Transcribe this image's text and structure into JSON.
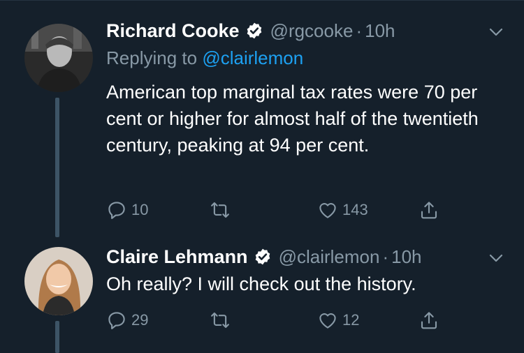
{
  "tweets": [
    {
      "name": "Richard Cooke",
      "handle": "@rgcooke",
      "dot": "·",
      "time": "10h",
      "replying_prefix": "Replying to ",
      "replying_handle": "@clairlemon",
      "text": "American top marginal tax rates were 70 per cent or higher for almost half of the twentieth century, peaking at 94 per cent.",
      "replies": "10",
      "retweets": "",
      "likes": "143"
    },
    {
      "name": "Claire Lehmann",
      "handle": "@clairlemon",
      "dot": "·",
      "time": "10h",
      "text": "Oh really? I will check out the history.",
      "replies": "29",
      "retweets": "",
      "likes": "12"
    }
  ],
  "colors": {
    "background": "#15202b",
    "secondary_text": "#8899a6",
    "link": "#1da1f2",
    "thread_line": "#3d5466"
  },
  "icons": [
    "verified-badge-icon",
    "chevron-down-icon",
    "reply-icon",
    "retweet-icon",
    "like-icon",
    "share-icon"
  ]
}
